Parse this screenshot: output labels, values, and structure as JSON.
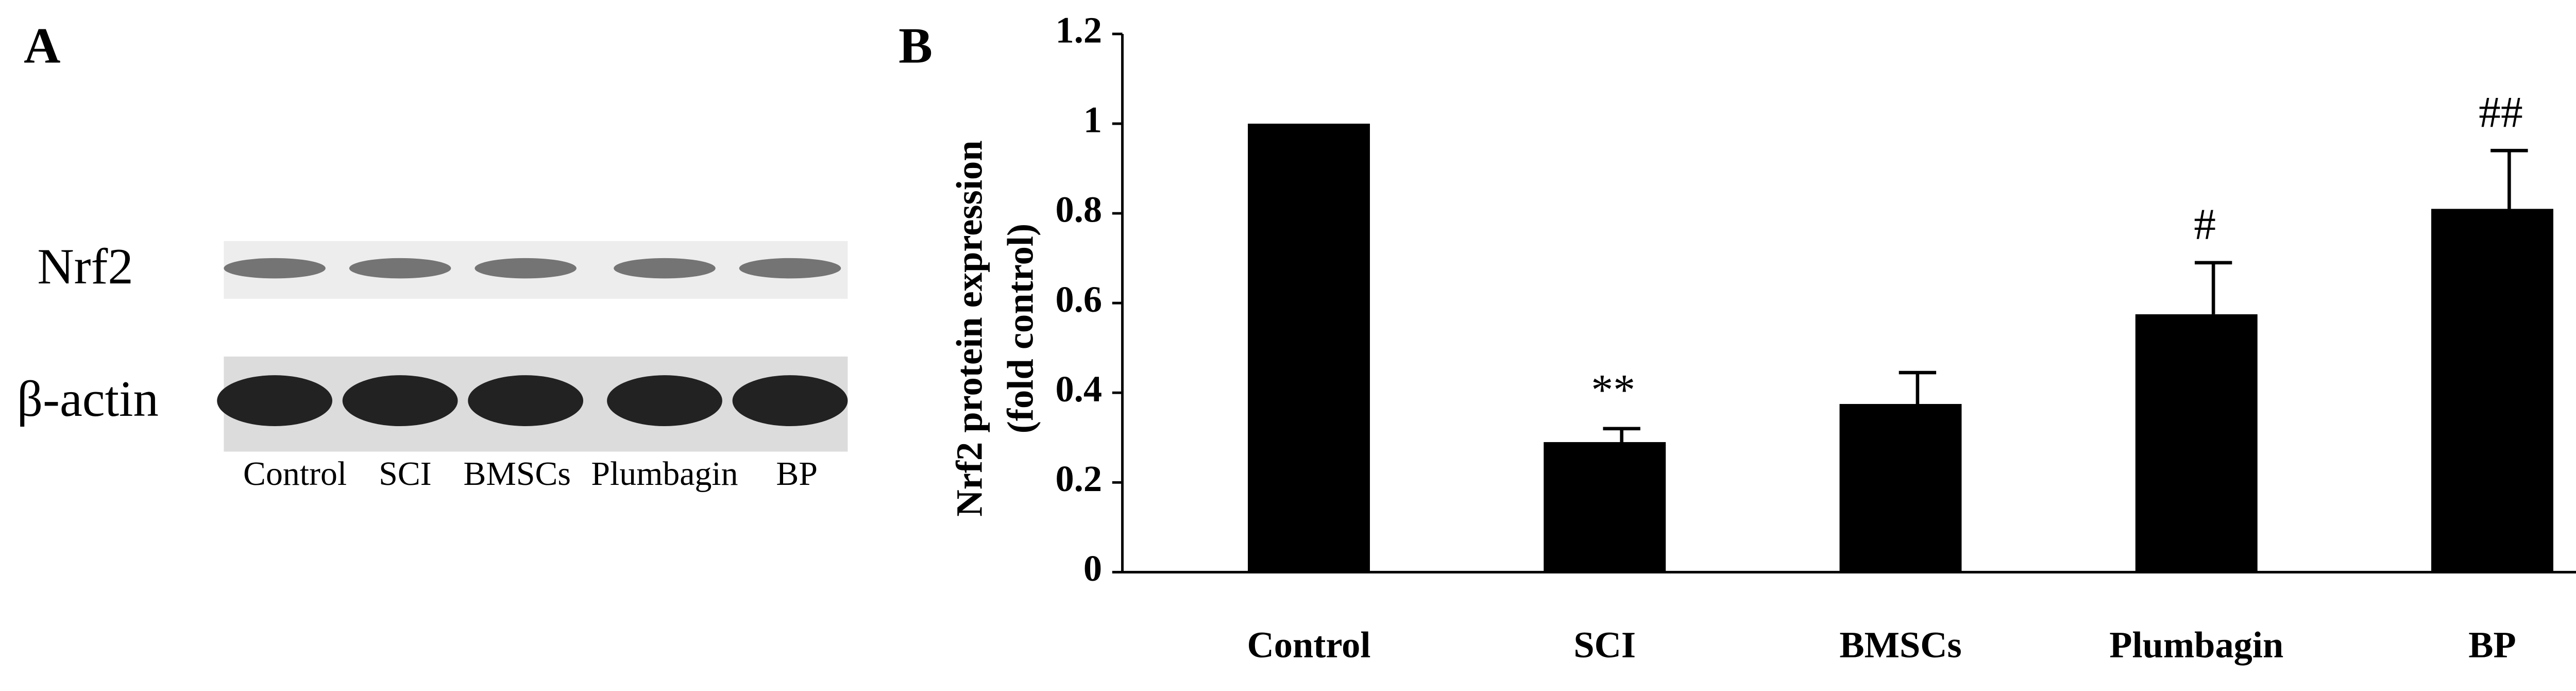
{
  "panel_a": {
    "label": "A",
    "rows": [
      "Nrf2",
      "β-actin"
    ],
    "lanes": [
      "Control",
      "SCI",
      "BMSCs",
      "Plumbagin",
      "BP"
    ]
  },
  "chart_data": {
    "type": "bar",
    "panel_label": "B",
    "y_label_lines": [
      "Nrf2 protein expression",
      "(fold control)"
    ],
    "categories": [
      "Control",
      "SCI",
      "BMSCs",
      "Plumbagin",
      "BP"
    ],
    "values": [
      1,
      0.29,
      0.375,
      0.575,
      0.81
    ],
    "errors": [
      null,
      0.03,
      0.07,
      0.115,
      0.13
    ],
    "annotations": [
      null,
      "**",
      null,
      "#",
      "##"
    ],
    "color": "#000000",
    "ylim": [
      0,
      1.2
    ],
    "yticks": [
      0,
      0.2,
      0.4,
      0.6,
      0.8,
      1,
      1.2
    ],
    "grid": false
  }
}
